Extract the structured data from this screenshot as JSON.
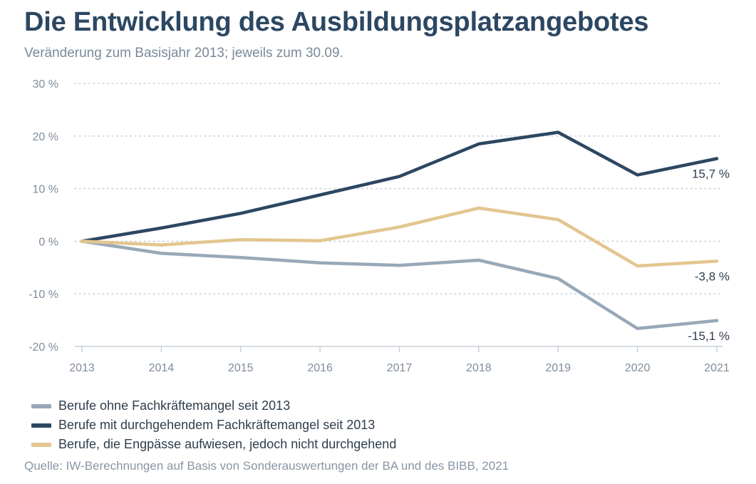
{
  "title": "Die Entwicklung des Ausbildungsplatzangebotes",
  "subtitle": "Veränderung zum Basisjahr 2013; jeweils zum 30.09.",
  "source": "Quelle: IW-Berechnungen auf Basis von Sonderauswertungen der BA und des BIBB, 2021",
  "chart_data": {
    "type": "line",
    "x": [
      "2013",
      "2014",
      "2015",
      "2016",
      "2017",
      "2018",
      "2019",
      "2020",
      "2021"
    ],
    "ylim": [
      -20,
      30
    ],
    "yticks": [
      30,
      20,
      10,
      0,
      -10,
      -20
    ],
    "ytick_labels": [
      "30 %",
      "20 %",
      "10 %",
      "0 %",
      "-10 %",
      "-20 %"
    ],
    "grid": true,
    "legend_position": "bottom-left",
    "series": [
      {
        "name": "Berufe ohne Fachkräftemangel seit 2013",
        "color": "#98a8b8",
        "values": [
          0,
          -2.3,
          -3.1,
          -4.1,
          -4.6,
          -3.6,
          -7.1,
          -16.6,
          -15.1
        ],
        "end_label": "-15,1 %"
      },
      {
        "name": "Berufe mit durchgehendem Fachkräftemangel seit 2013",
        "color": "#2c4762",
        "values": [
          0,
          2.5,
          5.3,
          8.8,
          12.3,
          18.5,
          20.7,
          12.6,
          15.7
        ],
        "end_label": "15,7 %"
      },
      {
        "name": "Berufe, die Engpässe aufwiesen, jedoch nicht durchgehend",
        "color": "#e3c68f",
        "values": [
          0,
          -0.7,
          0.3,
          0.1,
          2.7,
          6.3,
          4.1,
          -4.7,
          -3.8
        ],
        "end_label": "-3,8 %"
      }
    ]
  }
}
